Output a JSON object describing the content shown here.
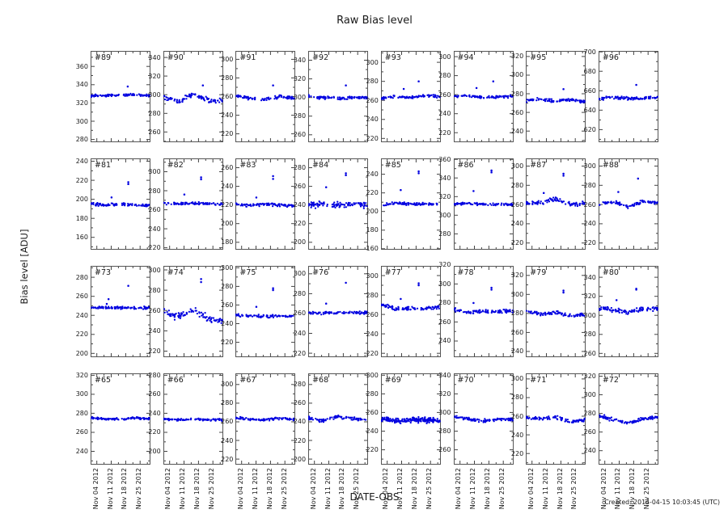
{
  "figure": {
    "title": "Raw Bias level",
    "ylabel": "Bias level [ADU]",
    "xlabel": "DATE-OBS",
    "created": "Created: 2014-04-15 10:03:45 (UTC)"
  },
  "colors": {
    "point": "#0000e0",
    "frame": "#555555",
    "tick": "#444444",
    "text": "#1a1a1a",
    "background": "#ffffff"
  },
  "chart_data": {
    "type": "scatter",
    "title": "Raw Bias level",
    "xlabel": "DATE-OBS",
    "ylabel": "Bias level [ADU]",
    "grid": false,
    "layout": {
      "rows": 4,
      "cols": 8,
      "order": "row-major, top-left to bottom-right"
    },
    "x_tick_labels": [
      "Nov 04 2012",
      "Nov 11 2012",
      "Nov 18 2012",
      "Nov 25 2012"
    ],
    "x_tick_days": [
      4,
      11,
      18,
      25
    ],
    "x_minor_tick_days": [
      7.5,
      14.5,
      21.5,
      28.5
    ],
    "x_range_days": [
      1,
      30
    ],
    "point_description": "daily clusters of raw bias measurements forming a near-horizontal band per detector, with isolated high outliers",
    "panels": [
      {
        "label": "#89",
        "yticks": [
          280,
          300,
          320,
          340,
          360
        ],
        "ylim": [
          277,
          377
        ],
        "band_profile": [
          328,
          328,
          328,
          329,
          328
        ],
        "noise": 1.2,
        "n_points": 95,
        "outliers": [
          [
            0.62,
            338
          ]
        ]
      },
      {
        "label": "#90",
        "yticks": [
          260,
          280,
          300,
          320,
          340
        ],
        "ylim": [
          249,
          347
        ],
        "band_profile": [
          298,
          292,
          301,
          294,
          293
        ],
        "noise": 2.6,
        "n_points": 95,
        "outliers": [
          [
            0.66,
            310
          ]
        ]
      },
      {
        "label": "#91",
        "yticks": [
          220,
          240,
          260,
          280,
          300
        ],
        "ylim": [
          211,
          309
        ],
        "band_profile": [
          261,
          258,
          257,
          260,
          258
        ],
        "noise": 1.5,
        "n_points": 95,
        "outliers": [
          [
            0.63,
            272
          ]
        ]
      },
      {
        "label": "#92",
        "yticks": [
          260,
          280,
          300,
          320,
          340
        ],
        "ylim": [
          252,
          350
        ],
        "band_profile": [
          301,
          300,
          299,
          300,
          300
        ],
        "noise": 1.5,
        "n_points": 95,
        "outliers": [
          [
            0.63,
            313
          ]
        ]
      },
      {
        "label": "#93",
        "yticks": [
          220,
          240,
          260,
          280,
          300
        ],
        "ylim": [
          216,
          312
        ],
        "band_profile": [
          262,
          264,
          263,
          265,
          264
        ],
        "noise": 1.2,
        "n_points": 95,
        "outliers": [
          [
            0.38,
            272
          ],
          [
            0.63,
            280
          ]
        ]
      },
      {
        "label": "#94",
        "yticks": [
          220,
          240,
          260,
          280,
          300
        ],
        "ylim": [
          210,
          306
        ],
        "band_profile": [
          258,
          259,
          257,
          258,
          258
        ],
        "noise": 1.2,
        "n_points": 95,
        "outliers": [
          [
            0.38,
            267
          ],
          [
            0.66,
            274
          ]
        ]
      },
      {
        "label": "#95",
        "yticks": [
          240,
          260,
          280,
          300,
          320
        ],
        "ylim": [
          228,
          326
        ],
        "band_profile": [
          273,
          274,
          272,
          274,
          271
        ],
        "noise": 1.5,
        "n_points": 95,
        "outliers": [
          [
            0.63,
            285
          ]
        ]
      },
      {
        "label": "#96",
        "yticks": [
          620,
          640,
          660,
          680,
          700
        ],
        "ylim": [
          607,
          701
        ],
        "band_profile": [
          652,
          653,
          652,
          652,
          653
        ],
        "noise": 1.4,
        "n_points": 95,
        "outliers": [
          [
            0.63,
            666
          ]
        ]
      },
      {
        "label": "#81",
        "yticks": [
          160,
          180,
          200,
          220,
          240
        ],
        "ylim": [
          147,
          243
        ],
        "band_profile": [
          195,
          194,
          195,
          194,
          193
        ],
        "noise": 1.4,
        "n_points": 95,
        "outliers": [
          [
            0.35,
            202
          ],
          [
            0.63,
            216
          ],
          [
            0.63,
            218
          ]
        ]
      },
      {
        "label": "#82",
        "yticks": [
          220,
          240,
          260,
          280,
          300
        ],
        "ylim": [
          218,
          314
        ],
        "band_profile": [
          267,
          266,
          267,
          266,
          266
        ],
        "noise": 1.3,
        "n_points": 95,
        "outliers": [
          [
            0.35,
            276
          ],
          [
            0.63,
            292
          ],
          [
            0.63,
            294
          ]
        ]
      },
      {
        "label": "#83",
        "yticks": [
          180,
          200,
          220,
          240,
          260
        ],
        "ylim": [
          172,
          270
        ],
        "band_profile": [
          221,
          219,
          221,
          220,
          219
        ],
        "noise": 1.5,
        "n_points": 95,
        "outliers": [
          [
            0.35,
            228
          ],
          [
            0.63,
            248
          ],
          [
            0.63,
            251
          ]
        ]
      },
      {
        "label": "#84",
        "yticks": [
          200,
          220,
          240,
          260,
          280
        ],
        "ylim": [
          192,
          290
        ],
        "band_profile": [
          240,
          241,
          240,
          241,
          240
        ],
        "noise": 2.8,
        "n_points": 115,
        "outliers": [
          [
            0.3,
            259
          ],
          [
            0.63,
            272
          ],
          [
            0.63,
            274
          ]
        ]
      },
      {
        "label": "#85",
        "yticks": [
          160,
          180,
          200,
          220,
          240
        ],
        "ylim": [
          159,
          257
        ],
        "band_profile": [
          207,
          209,
          208,
          208,
          208
        ],
        "noise": 1.3,
        "n_points": 95,
        "outliers": [
          [
            0.33,
            223
          ],
          [
            0.63,
            241
          ],
          [
            0.63,
            243
          ]
        ]
      },
      {
        "label": "#86",
        "yticks": [
          280,
          300,
          320,
          340,
          360
        ],
        "ylim": [
          263,
          361
        ],
        "band_profile": [
          312,
          312,
          312,
          312,
          311
        ],
        "noise": 1.3,
        "n_points": 95,
        "outliers": [
          [
            0.33,
            326
          ],
          [
            0.63,
            346
          ],
          [
            0.63,
            348
          ]
        ]
      },
      {
        "label": "#87",
        "yticks": [
          220,
          240,
          260,
          280,
          300
        ],
        "ylim": [
          213,
          308
        ],
        "band_profile": [
          261,
          262,
          266,
          260,
          261
        ],
        "noise": 1.8,
        "n_points": 95,
        "outliers": [
          [
            0.3,
            272
          ],
          [
            0.63,
            290
          ],
          [
            0.63,
            292
          ]
        ]
      },
      {
        "label": "#88",
        "yticks": [
          220,
          240,
          260,
          280,
          300
        ],
        "ylim": [
          213,
          308
        ],
        "band_profile": [
          260,
          263,
          258,
          263,
          262
        ],
        "noise": 1.5,
        "n_points": 95,
        "outliers": [
          [
            0.33,
            273
          ],
          [
            0.66,
            287
          ]
        ]
      },
      {
        "label": "#73",
        "yticks": [
          200,
          220,
          240,
          260,
          280
        ],
        "ylim": [
          196,
          292
        ],
        "band_profile": [
          248,
          248,
          248,
          248,
          248
        ],
        "noise": 1.2,
        "n_points": 95,
        "outliers": [
          [
            0.27,
            252
          ],
          [
            0.3,
            257
          ],
          [
            0.63,
            271
          ]
        ]
      },
      {
        "label": "#74",
        "yticks": [
          220,
          240,
          260,
          280,
          300
        ],
        "ylim": [
          214,
          304
        ],
        "band_profile": [
          259,
          253,
          260,
          252,
          249
        ],
        "noise": 3.5,
        "n_points": 95,
        "outliers": [
          [
            0.63,
            288
          ],
          [
            0.63,
            291
          ]
        ]
      },
      {
        "label": "#75",
        "yticks": [
          220,
          240,
          260,
          280,
          300
        ],
        "ylim": [
          204,
          302
        ],
        "band_profile": [
          249,
          248,
          248,
          248,
          248
        ],
        "noise": 1.3,
        "n_points": 95,
        "outliers": [
          [
            0.35,
            258
          ],
          [
            0.63,
            276
          ],
          [
            0.63,
            278
          ]
        ]
      },
      {
        "label": "#76",
        "yticks": [
          220,
          240,
          260,
          280,
          300
        ],
        "ylim": [
          216,
          308
        ],
        "band_profile": [
          261,
          260,
          261,
          261,
          261
        ],
        "noise": 1.3,
        "n_points": 95,
        "outliers": [
          [
            0.3,
            270
          ],
          [
            0.63,
            291
          ]
        ]
      },
      {
        "label": "#77",
        "yticks": [
          220,
          240,
          260,
          280,
          300
        ],
        "ylim": [
          216,
          310
        ],
        "band_profile": [
          270,
          266,
          266,
          266,
          268
        ],
        "noise": 1.8,
        "n_points": 95,
        "outliers": [
          [
            0.33,
            276
          ],
          [
            0.63,
            290
          ],
          [
            0.63,
            292
          ]
        ]
      },
      {
        "label": "#78",
        "yticks": [
          240,
          260,
          280,
          300,
          320
        ],
        "ylim": [
          223,
          319
        ],
        "band_profile": [
          273,
          270,
          271,
          271,
          272
        ],
        "noise": 1.8,
        "n_points": 95,
        "outliers": [
          [
            0.33,
            280
          ],
          [
            0.63,
            294
          ],
          [
            0.63,
            296
          ]
        ]
      },
      {
        "label": "#79",
        "yticks": [
          240,
          260,
          280,
          300,
          320
        ],
        "ylim": [
          234,
          330
        ],
        "band_profile": [
          283,
          279,
          281,
          277,
          279
        ],
        "noise": 1.8,
        "n_points": 95,
        "outliers": [
          [
            0.63,
            302
          ],
          [
            0.63,
            304
          ]
        ]
      },
      {
        "label": "#80",
        "yticks": [
          260,
          280,
          300,
          320,
          340
        ],
        "ylim": [
          256,
          352
        ],
        "band_profile": [
          308,
          306,
          303,
          307,
          306
        ],
        "noise": 2.2,
        "n_points": 95,
        "outliers": [
          [
            0.3,
            316
          ],
          [
            0.63,
            327
          ],
          [
            0.63,
            328
          ]
        ]
      },
      {
        "label": "#65",
        "yticks": [
          240,
          260,
          280,
          300,
          320
        ],
        "ylim": [
          226,
          322
        ],
        "band_profile": [
          275,
          274,
          274,
          275,
          274
        ],
        "noise": 1.1,
        "n_points": 95,
        "outliers": []
      },
      {
        "label": "#66",
        "yticks": [
          200,
          220,
          240,
          260,
          280
        ],
        "ylim": [
          186,
          282
        ],
        "band_profile": [
          234,
          233,
          234,
          233,
          233
        ],
        "noise": 1.0,
        "n_points": 95,
        "outliers": []
      },
      {
        "label": "#67",
        "yticks": [
          220,
          240,
          260,
          280,
          300
        ],
        "ylim": [
          214,
          312
        ],
        "band_profile": [
          264,
          263,
          262,
          264,
          262
        ],
        "noise": 1.3,
        "n_points": 95,
        "outliers": []
      },
      {
        "label": "#68",
        "yticks": [
          200,
          220,
          240,
          260,
          280
        ],
        "ylim": [
          194,
          292
        ],
        "band_profile": [
          244,
          241,
          246,
          243,
          242
        ],
        "noise": 1.6,
        "n_points": 95,
        "outliers": []
      },
      {
        "label": "#69",
        "yticks": [
          220,
          240,
          260,
          280,
          300
        ],
        "ylim": [
          204,
          302
        ],
        "band_profile": [
          253,
          251,
          252,
          252,
          251
        ],
        "noise": 2.6,
        "n_points": 220,
        "outliers": []
      },
      {
        "label": "#70",
        "yticks": [
          260,
          280,
          300,
          320,
          340
        ],
        "ylim": [
          244,
          342
        ],
        "band_profile": [
          295,
          293,
          291,
          293,
          292
        ],
        "noise": 1.5,
        "n_points": 95,
        "outliers": []
      },
      {
        "label": "#71",
        "yticks": [
          220,
          240,
          260,
          280,
          300
        ],
        "ylim": [
          208,
          306
        ],
        "band_profile": [
          259,
          257,
          259,
          254,
          256
        ],
        "noise": 1.6,
        "n_points": 95,
        "outliers": []
      },
      {
        "label": "#72",
        "yticks": [
          240,
          260,
          280,
          300,
          320
        ],
        "ylim": [
          225,
          323
        ],
        "band_profile": [
          277,
          274,
          270,
          274,
          276
        ],
        "noise": 2.0,
        "n_points": 95,
        "outliers": []
      }
    ]
  }
}
